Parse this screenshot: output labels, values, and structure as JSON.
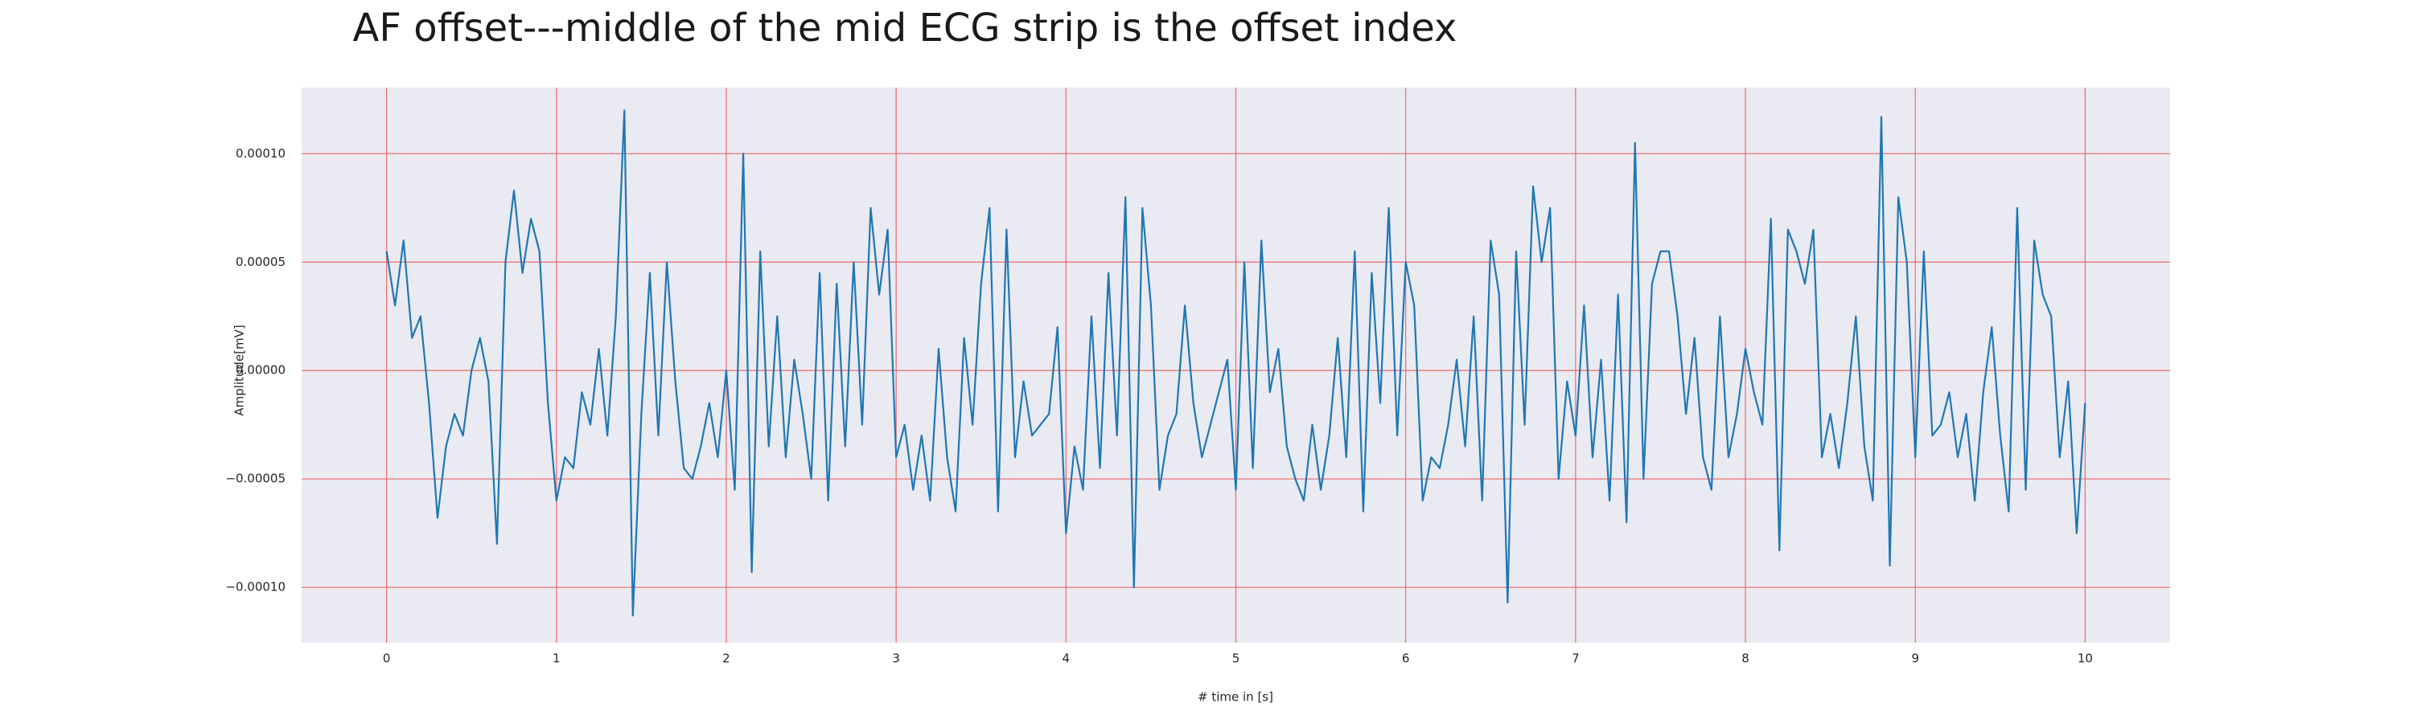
{
  "chart_data": {
    "type": "line",
    "title": "AF offset---middle of the mid ECG strip is the offset index",
    "xlabel": "# time in [s]",
    "ylabel": "Amplitude[mV]",
    "color": "#1f77b4",
    "background": "#eaeaf2",
    "grid": true,
    "grid_color": "#ec6a6a",
    "xlim": [
      -0.5,
      10.5
    ],
    "ylim": [
      -0.0001255,
      0.0001305
    ],
    "xticks": [
      0,
      1,
      2,
      3,
      4,
      5,
      6,
      7,
      8,
      9,
      10
    ],
    "yticks": [
      {
        "value": -0.0001,
        "label": "−0.00010"
      },
      {
        "value": -5e-05,
        "label": "−0.00005"
      },
      {
        "value": 0,
        "label": "0.00000"
      },
      {
        "value": 5e-05,
        "label": "0.00005"
      },
      {
        "value": 0.0001,
        "label": "0.00010"
      }
    ],
    "x": [
      0,
      0.05,
      0.1,
      0.15,
      0.2,
      0.25,
      0.3,
      0.35,
      0.4,
      0.45,
      0.5,
      0.55,
      0.6,
      0.65,
      0.7,
      0.75,
      0.8,
      0.85,
      0.9,
      0.95,
      1,
      1.05,
      1.1,
      1.15,
      1.2,
      1.25,
      1.3,
      1.35,
      1.4,
      1.45,
      1.5,
      1.55,
      1.6,
      1.65,
      1.7,
      1.75,
      1.8,
      1.85,
      1.9,
      1.95,
      2,
      2.05,
      2.1,
      2.15,
      2.2,
      2.25,
      2.3,
      2.35,
      2.4,
      2.45,
      2.5,
      2.55,
      2.6,
      2.65,
      2.7,
      2.75,
      2.8,
      2.85,
      2.9,
      2.95,
      3,
      3.05,
      3.1,
      3.15,
      3.2,
      3.25,
      3.3,
      3.35,
      3.4,
      3.45,
      3.5,
      3.55,
      3.6,
      3.65,
      3.7,
      3.75,
      3.8,
      3.85,
      3.9,
      3.95,
      4,
      4.05,
      4.1,
      4.15,
      4.2,
      4.25,
      4.3,
      4.35,
      4.4,
      4.45,
      4.5,
      4.55,
      4.6,
      4.65,
      4.7,
      4.75,
      4.8,
      4.85,
      4.9,
      4.95,
      5,
      5.05,
      5.1,
      5.15,
      5.2,
      5.25,
      5.3,
      5.35,
      5.4,
      5.45,
      5.5,
      5.55,
      5.6,
      5.65,
      5.7,
      5.75,
      5.8,
      5.85,
      5.9,
      5.95,
      6,
      6.05,
      6.1,
      6.15,
      6.2,
      6.25,
      6.3,
      6.35,
      6.4,
      6.45,
      6.5,
      6.55,
      6.6,
      6.65,
      6.7,
      6.75,
      6.8,
      6.85,
      6.9,
      6.95,
      7,
      7.05,
      7.1,
      7.15,
      7.2,
      7.25,
      7.3,
      7.35,
      7.4,
      7.45,
      7.5,
      7.55,
      7.6,
      7.65,
      7.7,
      7.75,
      7.8,
      7.85,
      7.9,
      7.95,
      8,
      8.05,
      8.1,
      8.15,
      8.2,
      8.25,
      8.3,
      8.35,
      8.4,
      8.45,
      8.5,
      8.55,
      8.6,
      8.65,
      8.7,
      8.75,
      8.8,
      8.85,
      8.9,
      8.95,
      9,
      9.05,
      9.1,
      9.15,
      9.2,
      9.25,
      9.3,
      9.35,
      9.4,
      9.45,
      9.5,
      9.55,
      9.6,
      9.65,
      9.7,
      9.75,
      9.8,
      9.85,
      9.9,
      9.95,
      10
    ],
    "values": [
      5.5e-05,
      3e-05,
      6e-05,
      1.5e-05,
      2.5e-05,
      -1.5e-05,
      -6.8e-05,
      -3.5e-05,
      -2e-05,
      -3e-05,
      0,
      1.5e-05,
      -5e-06,
      -8e-05,
      5e-05,
      8.3e-05,
      4.5e-05,
      7e-05,
      5.5e-05,
      -1.5e-05,
      -6e-05,
      -4e-05,
      -4.5e-05,
      -1e-05,
      -2.5e-05,
      1e-05,
      -3e-05,
      2.5e-05,
      0.00012,
      -0.000113,
      -2e-05,
      4.5e-05,
      -3e-05,
      5e-05,
      -5e-06,
      -4.5e-05,
      -5e-05,
      -3.5e-05,
      -1.5e-05,
      -4e-05,
      0,
      -5.5e-05,
      0.0001,
      -9.3e-05,
      5.5e-05,
      -3.5e-05,
      2.5e-05,
      -4e-05,
      5e-06,
      -2e-05,
      -5e-05,
      4.5e-05,
      -6e-05,
      4e-05,
      -3.5e-05,
      5e-05,
      -2.5e-05,
      7.5e-05,
      3.5e-05,
      6.5e-05,
      -4e-05,
      -2.5e-05,
      -5.5e-05,
      -3e-05,
      -6e-05,
      1e-05,
      -4e-05,
      -6.5e-05,
      1.5e-05,
      -2.5e-05,
      4e-05,
      7.5e-05,
      -6.5e-05,
      6.5e-05,
      -4e-05,
      -5e-06,
      -3e-05,
      -2.5e-05,
      -2e-05,
      2e-05,
      -7.5e-05,
      -3.5e-05,
      -5.5e-05,
      2.5e-05,
      -4.5e-05,
      4.5e-05,
      -3e-05,
      8e-05,
      -0.0001,
      7.5e-05,
      3e-05,
      -5.5e-05,
      -3e-05,
      -2e-05,
      3e-05,
      -1.5e-05,
      -4e-05,
      -2.5e-05,
      -1e-05,
      5e-06,
      -5.5e-05,
      5e-05,
      -4.5e-05,
      6e-05,
      -1e-05,
      1e-05,
      -3.5e-05,
      -5e-05,
      -6e-05,
      -2.5e-05,
      -5.5e-05,
      -3e-05,
      1.5e-05,
      -4e-05,
      5.5e-05,
      -6.5e-05,
      4.5e-05,
      -1.5e-05,
      7.5e-05,
      -3e-05,
      5e-05,
      3e-05,
      -6e-05,
      -4e-05,
      -4.5e-05,
      -2.5e-05,
      5e-06,
      -3.5e-05,
      2.5e-05,
      -6e-05,
      6e-05,
      3.5e-05,
      -0.000107,
      5.5e-05,
      -2.5e-05,
      8.5e-05,
      5e-05,
      7.5e-05,
      -5e-05,
      -5e-06,
      -3e-05,
      3e-05,
      -4e-05,
      5e-06,
      -6e-05,
      3.5e-05,
      -7e-05,
      0.000105,
      -5e-05,
      4e-05,
      5.5e-05,
      5.5e-05,
      2.5e-05,
      -2e-05,
      1.5e-05,
      -4e-05,
      -5.5e-05,
      2.5e-05,
      -4e-05,
      -2e-05,
      1e-05,
      -1e-05,
      -2.5e-05,
      7e-05,
      -8.3e-05,
      6.5e-05,
      5.5e-05,
      4e-05,
      6.5e-05,
      -4e-05,
      -2e-05,
      -4.5e-05,
      -1.5e-05,
      2.5e-05,
      -3.5e-05,
      -6e-05,
      0.000117,
      -9e-05,
      8e-05,
      5e-05,
      -4e-05,
      5.5e-05,
      -3e-05,
      -2.5e-05,
      -1e-05,
      -4e-05,
      -2e-05,
      -6e-05,
      -1e-05,
      2e-05,
      -3e-05,
      -6.5e-05,
      7.5e-05,
      -5.5e-05,
      6e-05,
      3.5e-05,
      2.5e-05,
      -4e-05,
      -5e-06,
      -7.5e-05,
      -1.5e-05
    ]
  }
}
